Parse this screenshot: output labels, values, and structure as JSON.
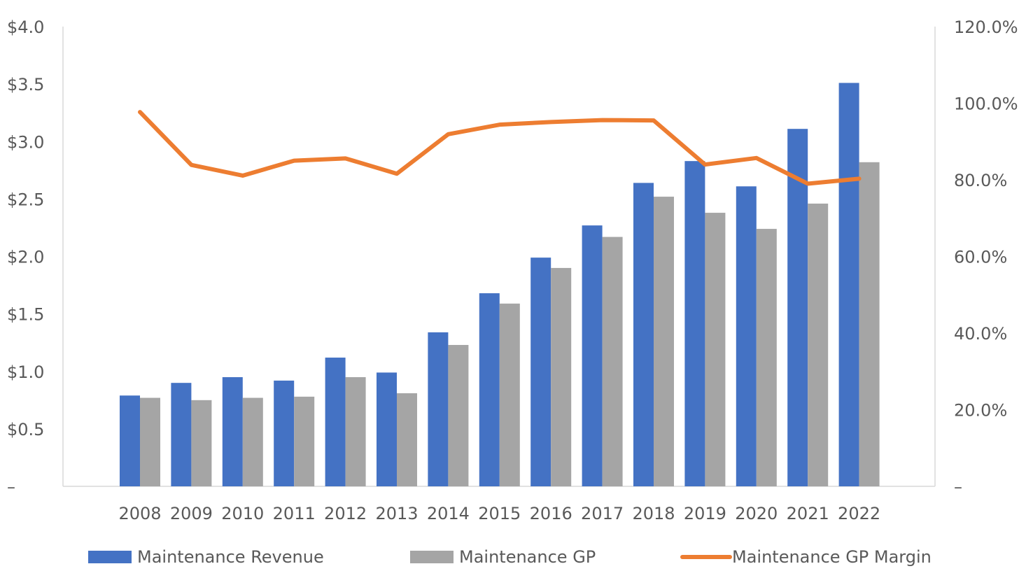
{
  "chart_data": {
    "type": "bar",
    "categories": [
      "2008",
      "2009",
      "2010",
      "2011",
      "2012",
      "2013",
      "2014",
      "2015",
      "2016",
      "2017",
      "2018",
      "2019",
      "2020",
      "2021",
      "2022"
    ],
    "series": [
      {
        "name": "Maintenance Revenue",
        "type": "bar",
        "axis": "left",
        "color": "#4472C4",
        "values": [
          0.79,
          0.9,
          0.95,
          0.92,
          1.12,
          0.99,
          1.34,
          1.68,
          1.99,
          2.27,
          2.64,
          2.83,
          2.61,
          3.11,
          3.51
        ]
      },
      {
        "name": "Maintenance GP",
        "type": "bar",
        "axis": "left",
        "color": "#A5A5A5",
        "values": [
          0.77,
          0.75,
          0.77,
          0.78,
          0.95,
          0.81,
          1.23,
          1.59,
          1.9,
          2.17,
          2.52,
          2.38,
          2.24,
          2.46,
          2.82
        ]
      },
      {
        "name": "Maintenance GP Margin",
        "type": "line",
        "axis": "right",
        "color": "#ED7D31",
        "values": [
          97.7,
          83.9,
          81.1,
          85.0,
          85.6,
          81.6,
          91.9,
          94.4,
          95.1,
          95.6,
          95.5,
          84.0,
          85.7,
          79.0,
          80.3
        ]
      }
    ],
    "y_left": {
      "min": 0,
      "max": 4.0,
      "ticks": [
        0,
        0.5,
        1.0,
        1.5,
        2.0,
        2.5,
        3.0,
        3.5,
        4.0
      ],
      "tick_labels": [
        "–",
        "$0.5",
        "$1.0",
        "$1.5",
        "$2.0",
        "$2.5",
        "$3.0",
        "$3.5",
        "$4.0"
      ]
    },
    "y_right": {
      "min": 0,
      "max": 120,
      "ticks": [
        0,
        20,
        40,
        60,
        80,
        100,
        120
      ],
      "tick_labels": [
        "–",
        "20.0%",
        "40.0%",
        "60.0%",
        "80.0%",
        "100.0%",
        "120.0%"
      ]
    },
    "grid": false,
    "legend_position": "bottom",
    "axis_color": "#D9D9D9",
    "text_color": "#595959"
  }
}
